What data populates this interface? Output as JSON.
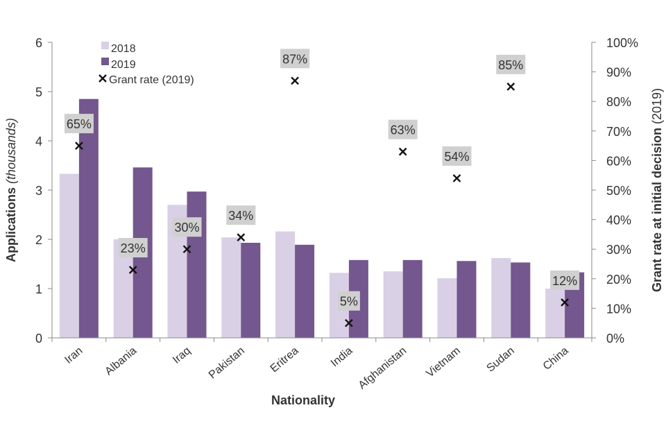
{
  "chart_data": {
    "type": "bar",
    "categories": [
      "Iran",
      "Albania",
      "Iraq",
      "Pakistan",
      "Eritrea",
      "India",
      "Afghanistan",
      "Vietnam",
      "Sudan",
      "China"
    ],
    "series": [
      {
        "name": "2018",
        "values": [
          3.33,
          2.0,
          2.7,
          2.04,
          2.16,
          1.32,
          1.35,
          1.21,
          1.62,
          1.0
        ]
      },
      {
        "name": "2019",
        "values": [
          4.85,
          3.46,
          2.97,
          1.93,
          1.89,
          1.58,
          1.58,
          1.56,
          1.53,
          1.33
        ]
      }
    ],
    "grant_rate": {
      "name": "Grant rate (2019)",
      "values": [
        65,
        23,
        30,
        34,
        87,
        5,
        63,
        54,
        85,
        12
      ],
      "labels": [
        "65%",
        "23%",
        "30%",
        "34%",
        "87%",
        "5%",
        "63%",
        "54%",
        "85%",
        "12%"
      ]
    },
    "xlabel": "Nationality",
    "ylabel": {
      "main": "Applications ",
      "italic": "(thousands)"
    },
    "y2label": {
      "main": "Grant rate at initial decision ",
      "paren": "(2019)"
    },
    "ylim": [
      0,
      6
    ],
    "yticks": [
      "0",
      "1",
      "2",
      "3",
      "4",
      "5",
      "6"
    ],
    "y2lim": [
      0,
      100
    ],
    "y2ticks": [
      "0%",
      "10%",
      "20%",
      "30%",
      "40%",
      "50%",
      "60%",
      "70%",
      "80%",
      "90%",
      "100%"
    ],
    "legend": {
      "position": "top-left",
      "entries": [
        "2018",
        "2019",
        "Grant rate (2019)"
      ]
    },
    "colors": {
      "s2018": "#d9d0e5",
      "s2019": "#74578e",
      "marker": "#111111",
      "labelBox": "#d0d0d0",
      "axis": "#8a8a8a",
      "text": "#333333"
    },
    "grid": false
  }
}
